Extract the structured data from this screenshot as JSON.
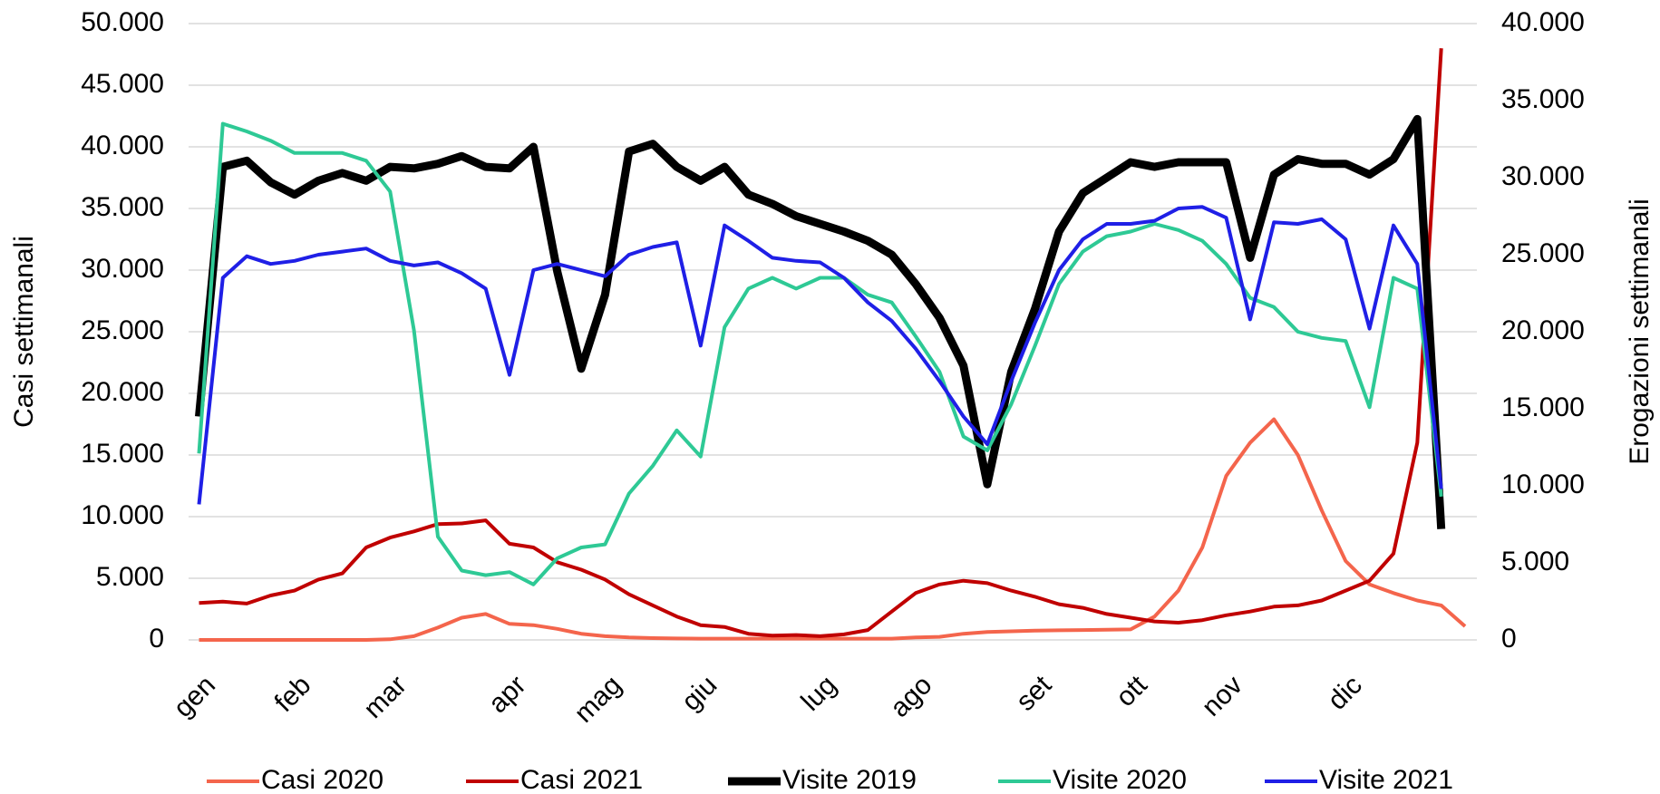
{
  "chart_data": {
    "type": "line",
    "ylabel": "Casi settimanali",
    "y2label": "Erogazioni settimanali",
    "categories": [
      "gen",
      null,
      null,
      null,
      "feb",
      null,
      null,
      null,
      "mar",
      null,
      null,
      null,
      null,
      "apr",
      null,
      null,
      null,
      "mag",
      null,
      null,
      null,
      "giu",
      null,
      null,
      null,
      null,
      "lug",
      null,
      null,
      null,
      "ago",
      null,
      null,
      null,
      null,
      "set",
      null,
      null,
      null,
      "ott",
      null,
      null,
      null,
      "nov",
      null,
      null,
      null,
      null,
      "dic",
      null,
      null,
      null,
      null,
      null
    ],
    "series": [
      {
        "name": "Casi 2020",
        "color": "#f4654c",
        "axis": "y",
        "width": 4,
        "values": [
          0,
          0,
          0,
          0,
          0,
          0,
          0,
          0,
          50,
          300,
          1000,
          1800,
          2100,
          1300,
          1200,
          900,
          500,
          300,
          200,
          150,
          120,
          100,
          100,
          100,
          100,
          100,
          100,
          100,
          100,
          100,
          200,
          250,
          500,
          650,
          700,
          750,
          780,
          800,
          820,
          850,
          1900,
          4000,
          7500,
          13300,
          16000,
          17900,
          15000,
          10500,
          6400,
          4500,
          3800,
          3200,
          2800,
          1100
        ]
      },
      {
        "name": "Casi 2021",
        "color": "#c00000",
        "axis": "y",
        "width": 4,
        "values": [
          3000,
          3100,
          2950,
          3600,
          4000,
          4900,
          5400,
          7500,
          8300,
          8800,
          9400,
          9450,
          9700,
          7800,
          7500,
          6300,
          5700,
          4900,
          3700,
          2800,
          1900,
          1200,
          1050,
          500,
          350,
          400,
          300,
          450,
          800,
          2300,
          3800,
          4500,
          4800,
          4600,
          4000,
          3500,
          2900,
          2600,
          2100,
          1800,
          1500,
          1400,
          1600,
          2000,
          2300,
          2700,
          2800,
          3200,
          4000,
          4800,
          7000,
          16000,
          48000,
          null
        ]
      },
      {
        "name": "Visite 2019",
        "color": "#000000",
        "axis": "y2",
        "width": 9,
        "values": [
          14500,
          30700,
          31100,
          29700,
          28900,
          29800,
          30300,
          29800,
          30700,
          30600,
          30900,
          31400,
          30700,
          30600,
          32000,
          23900,
          17600,
          22400,
          31700,
          32200,
          30700,
          29800,
          30700,
          28900,
          28300,
          27500,
          27000,
          26500,
          25900,
          25000,
          23100,
          20900,
          17800,
          10100,
          17400,
          21500,
          26500,
          29000,
          30000,
          31000,
          30700,
          31000,
          31000,
          31000,
          24800,
          30200,
          31200,
          30900,
          30900,
          30200,
          31200,
          33800,
          7200,
          null
        ]
      },
      {
        "name": "Visite 2020",
        "color": "#2ec995",
        "axis": "y2",
        "width": 4,
        "values": [
          12100,
          33500,
          33000,
          32400,
          31600,
          31600,
          31600,
          31100,
          29100,
          20100,
          6700,
          4500,
          4200,
          4400,
          3600,
          5300,
          6000,
          6200,
          9500,
          11300,
          13600,
          11900,
          20300,
          22800,
          23500,
          22800,
          23500,
          23500,
          22400,
          21900,
          19700,
          17400,
          13200,
          12300,
          15300,
          19100,
          23100,
          25200,
          26200,
          26500,
          27000,
          26600,
          25900,
          24400,
          22200,
          21600,
          20000,
          19600,
          19400,
          15100,
          23500,
          22800,
          9300,
          null
        ]
      },
      {
        "name": "Visite 2021",
        "color": "#1f1fe6",
        "axis": "y2",
        "width": 4,
        "values": [
          8800,
          23500,
          24900,
          24400,
          24600,
          25000,
          25200,
          25400,
          24600,
          24300,
          24500,
          23800,
          22800,
          17200,
          24000,
          24400,
          24000,
          23600,
          25000,
          25500,
          25800,
          19100,
          26900,
          25900,
          24800,
          24600,
          24500,
          23500,
          21900,
          20700,
          18900,
          16800,
          14500,
          12700,
          16800,
          20600,
          24000,
          26000,
          27000,
          27000,
          27200,
          28000,
          28100,
          27400,
          20800,
          27100,
          27000,
          27300,
          26000,
          20200,
          26900,
          24400,
          9800,
          null
        ]
      }
    ],
    "ylim": [
      0,
      50000
    ],
    "yticks": [
      0,
      {
        "value": 5000,
        "label": "5.000"
      },
      {
        "value": 10000,
        "label": "10.000"
      },
      {
        "value": 15000,
        "label": "15.000"
      },
      {
        "value": 20000,
        "label": "20.000"
      },
      {
        "value": 25000,
        "label": "25.000"
      },
      {
        "value": 30000,
        "label": "30.000"
      },
      {
        "value": 35000,
        "label": "35.000"
      },
      {
        "value": 40000,
        "label": "40.000"
      },
      {
        "value": 45000,
        "label": "45.000"
      },
      {
        "value": 50000,
        "label": "50.000"
      }
    ],
    "y2lim": [
      0,
      40000
    ],
    "y2ticks": [
      0,
      {
        "value": 5000,
        "label": "5.000"
      },
      {
        "value": 10000,
        "label": "10.000"
      },
      {
        "value": 15000,
        "label": "15.000"
      },
      {
        "value": 20000,
        "label": "20.000"
      },
      {
        "value": 25000,
        "label": "25.000"
      },
      {
        "value": 30000,
        "label": "30.000"
      },
      {
        "value": 35000,
        "label": "35.000"
      },
      {
        "value": 40000,
        "label": "40.000"
      }
    ],
    "grid": true,
    "legend": "bottom"
  }
}
